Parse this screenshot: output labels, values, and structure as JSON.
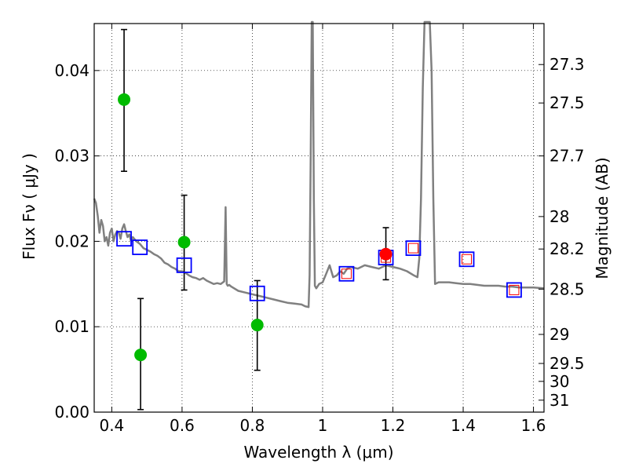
{
  "chart_data": {
    "type": "scatter",
    "xlabel": "Wavelength  λ (μm)",
    "ylabel": "Flux  Fν  ( μJy )",
    "ylabel_right": "Magnitude (AB)",
    "xlim": [
      0.35,
      1.63
    ],
    "ylim": [
      0.0,
      0.0455
    ],
    "grid": true,
    "x_ticks": [
      0.4,
      0.6,
      0.8,
      1.0,
      1.2,
      1.4,
      1.6
    ],
    "x_tick_labels": [
      "0.4",
      "0.6",
      "0.8",
      "1",
      "1.2",
      "1.4",
      "1.6"
    ],
    "y_ticks": [
      0.0,
      0.01,
      0.02,
      0.03,
      0.04
    ],
    "y_tick_labels": [
      "0.00",
      "0.01",
      "0.02",
      "0.03",
      "0.04"
    ],
    "right_ticks": [
      {
        "label": "27.3",
        "flux": 0.0407
      },
      {
        "label": "27.5",
        "flux": 0.0362
      },
      {
        "label": "27.7",
        "flux": 0.03
      },
      {
        "label": "28",
        "flux": 0.0229
      },
      {
        "label": "28.2",
        "flux": 0.0191
      },
      {
        "label": "28.5",
        "flux": 0.0144
      },
      {
        "label": "29",
        "flux": 0.0091
      },
      {
        "label": "29.5",
        "flux": 0.0057
      },
      {
        "label": "30",
        "flux": 0.0036
      },
      {
        "label": "31",
        "flux": 0.0014
      }
    ],
    "colors": {
      "model": "#808080",
      "observed": "#00bb00",
      "detected": "#ff0000",
      "synthetic": "#0000ff",
      "synthetic_inner": "#ff0000",
      "error_bar": "#000000"
    },
    "series": [
      {
        "name": "model spectrum",
        "type": "line",
        "x": [
          0.35,
          0.355,
          0.36,
          0.365,
          0.37,
          0.375,
          0.38,
          0.385,
          0.39,
          0.395,
          0.4,
          0.405,
          0.41,
          0.415,
          0.42,
          0.425,
          0.43,
          0.435,
          0.44,
          0.445,
          0.45,
          0.455,
          0.46,
          0.47,
          0.48,
          0.49,
          0.5,
          0.51,
          0.52,
          0.53,
          0.54,
          0.55,
          0.56,
          0.57,
          0.58,
          0.59,
          0.6,
          0.61,
          0.62,
          0.63,
          0.64,
          0.65,
          0.66,
          0.67,
          0.68,
          0.69,
          0.7,
          0.71,
          0.72,
          0.724,
          0.727,
          0.73,
          0.734,
          0.74,
          0.76,
          0.78,
          0.8,
          0.82,
          0.84,
          0.86,
          0.88,
          0.9,
          0.92,
          0.94,
          0.95,
          0.96,
          0.963,
          0.966,
          0.969,
          0.972,
          0.975,
          0.978,
          0.982,
          0.99,
          1.0,
          1.01,
          1.02,
          1.03,
          1.04,
          1.05,
          1.06,
          1.07,
          1.08,
          1.1,
          1.12,
          1.14,
          1.16,
          1.18,
          1.2,
          1.22,
          1.24,
          1.26,
          1.27,
          1.275,
          1.28,
          1.285,
          1.29,
          1.295,
          1.3,
          1.305,
          1.31,
          1.315,
          1.32,
          1.33,
          1.34,
          1.36,
          1.38,
          1.4,
          1.42,
          1.44,
          1.46,
          1.48,
          1.5,
          1.52,
          1.54,
          1.56,
          1.58,
          1.6,
          1.63
        ],
        "y": [
          0.025,
          0.0245,
          0.023,
          0.021,
          0.0225,
          0.0218,
          0.02,
          0.0205,
          0.0195,
          0.021,
          0.0215,
          0.02,
          0.0208,
          0.0212,
          0.021,
          0.0203,
          0.0215,
          0.022,
          0.0212,
          0.0205,
          0.0208,
          0.02,
          0.0205,
          0.02,
          0.0197,
          0.0192,
          0.019,
          0.0188,
          0.0185,
          0.0183,
          0.018,
          0.0175,
          0.0173,
          0.017,
          0.0168,
          0.0165,
          0.0165,
          0.0163,
          0.016,
          0.0158,
          0.0157,
          0.0155,
          0.0157,
          0.0154,
          0.0152,
          0.015,
          0.0151,
          0.015,
          0.0153,
          0.024,
          0.015,
          0.0148,
          0.0149,
          0.0147,
          0.0142,
          0.014,
          0.0138,
          0.0136,
          0.0134,
          0.0132,
          0.013,
          0.0128,
          0.0127,
          0.0126,
          0.0124,
          0.0123,
          0.016,
          0.03,
          0.046,
          0.046,
          0.025,
          0.0148,
          0.0145,
          0.015,
          0.0152,
          0.0162,
          0.0172,
          0.0158,
          0.016,
          0.0165,
          0.0162,
          0.0168,
          0.017,
          0.0168,
          0.0172,
          0.017,
          0.0168,
          0.0172,
          0.017,
          0.0168,
          0.0165,
          0.016,
          0.0158,
          0.018,
          0.025,
          0.038,
          0.046,
          0.046,
          0.046,
          0.046,
          0.04,
          0.025,
          0.015,
          0.0152,
          0.0152,
          0.0152,
          0.0151,
          0.015,
          0.015,
          0.0149,
          0.0148,
          0.0148,
          0.0148,
          0.0147,
          0.0147,
          0.0146,
          0.0146,
          0.0146,
          0.0145
        ]
      },
      {
        "name": "observed photometry",
        "type": "points",
        "x": [
          0.435,
          0.482,
          0.606,
          0.814
        ],
        "y": [
          0.0366,
          0.0067,
          0.0199,
          0.0102
        ],
        "yerr_low": [
          0.0282,
          0.0003,
          0.0143,
          0.0049
        ],
        "yerr_high": [
          0.0448,
          0.0133,
          0.0254,
          0.0154
        ]
      },
      {
        "name": "detection",
        "type": "points",
        "x": [
          1.18
        ],
        "y": [
          0.0185
        ],
        "yerr_low": [
          0.0155
        ],
        "yerr_high": [
          0.0216
        ]
      },
      {
        "name": "model synthetic photometry",
        "type": "squares",
        "x": [
          0.435,
          0.48,
          0.606,
          0.814,
          1.068,
          1.18,
          1.258,
          1.41,
          1.545
        ],
        "y": [
          0.0203,
          0.0193,
          0.0172,
          0.0139,
          0.0162,
          0.0181,
          0.0192,
          0.0179,
          0.0143
        ],
        "inner": [
          false,
          false,
          false,
          false,
          true,
          true,
          true,
          true,
          true
        ]
      }
    ]
  }
}
